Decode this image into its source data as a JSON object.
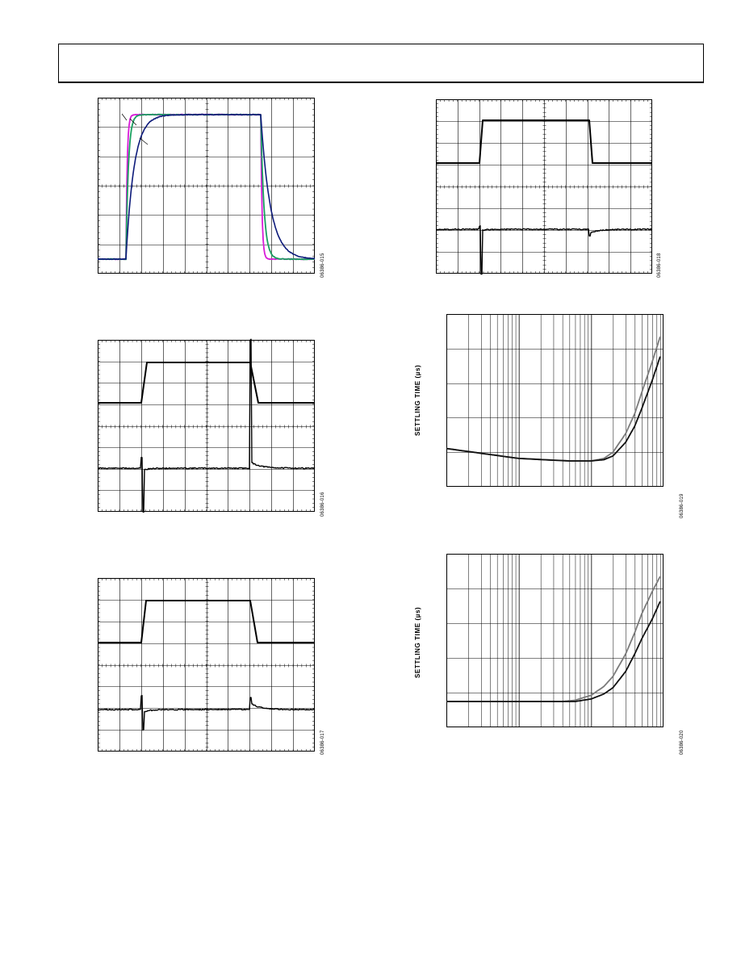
{
  "header": {
    "text": ""
  },
  "figures": [
    {
      "id_label": "06386-015",
      "traces": [
        {
          "color": "#d81bd8",
          "name": ""
        },
        {
          "color": "#1a9e60",
          "name": ""
        },
        {
          "color": "#0d1a7a",
          "name": ""
        }
      ]
    },
    {
      "id_label": "06386-016"
    },
    {
      "id_label": "06386-017"
    },
    {
      "id_label": "06386-018"
    },
    {
      "id_label": "06386-019",
      "ylabel": "SETTLING TIME (µs)"
    },
    {
      "id_label": "06386-020",
      "ylabel": "SETTLING TIME (µs)"
    }
  ],
  "chart_data": [
    {
      "type": "line",
      "title": "",
      "note": "scope capture, step response of three traces; axis values not printed",
      "series": [
        {
          "name": "",
          "color": "#d81bd8",
          "rise_time_div": 0.05,
          "fall_time_div": 0.05
        },
        {
          "name": "",
          "color": "#1a9e60",
          "rise_time_div": 0.2,
          "fall_time_div": 0.4
        },
        {
          "name": "",
          "color": "#0d1a7a",
          "rise_time_div": 1.2,
          "fall_time_div": 1.3
        }
      ],
      "grid": "10x6 divisions"
    },
    {
      "type": "line",
      "title": "",
      "note": "scope capture: step input (top) and settling error (bottom)",
      "grid": "10x8 divisions"
    },
    {
      "type": "line",
      "title": "",
      "note": "scope capture: step input (top) and settling error (bottom)",
      "grid": "10x8 divisions"
    },
    {
      "type": "line",
      "title": "",
      "note": "scope capture: step input (top) and settling error (bottom)",
      "grid": "10x8 divisions"
    },
    {
      "type": "line",
      "title": "",
      "xscale": "log",
      "ylabel": "SETTLING TIME (µs)",
      "note": "two settling-time curves vs log x; tick values not printed",
      "series": [
        {
          "name": "",
          "color": "#7a7a7a",
          "x": [
            1,
            10,
            50,
            100,
            150,
            200,
            300,
            400,
            500,
            700,
            900
          ],
          "y": [
            0.1,
            0.02,
            0.0,
            0.0,
            0.02,
            0.07,
            0.22,
            0.38,
            0.55,
            0.8,
            1.0
          ]
        },
        {
          "name": "",
          "color": "#111111",
          "x": [
            1,
            10,
            50,
            100,
            150,
            200,
            300,
            400,
            500,
            700,
            900
          ],
          "y": [
            0.1,
            0.02,
            0.0,
            0.0,
            0.01,
            0.04,
            0.15,
            0.28,
            0.42,
            0.65,
            0.84
          ]
        }
      ]
    },
    {
      "type": "line",
      "title": "",
      "xscale": "log",
      "ylabel": "SETTLING TIME (µs)",
      "note": "two settling-time curves vs log x; tick values not printed",
      "series": [
        {
          "name": "",
          "color": "#7a7a7a",
          "x": [
            1,
            10,
            40,
            60,
            100,
            150,
            200,
            300,
            400,
            500,
            700,
            900
          ],
          "y": [
            0.0,
            0.0,
            0.0,
            0.01,
            0.05,
            0.12,
            0.2,
            0.38,
            0.55,
            0.7,
            0.88,
            1.0
          ]
        },
        {
          "name": "",
          "color": "#111111",
          "x": [
            1,
            10,
            40,
            60,
            100,
            150,
            200,
            300,
            400,
            500,
            700,
            900
          ],
          "y": [
            0.0,
            0.0,
            0.0,
            0.0,
            0.02,
            0.06,
            0.11,
            0.24,
            0.38,
            0.5,
            0.66,
            0.8
          ]
        }
      ]
    }
  ]
}
